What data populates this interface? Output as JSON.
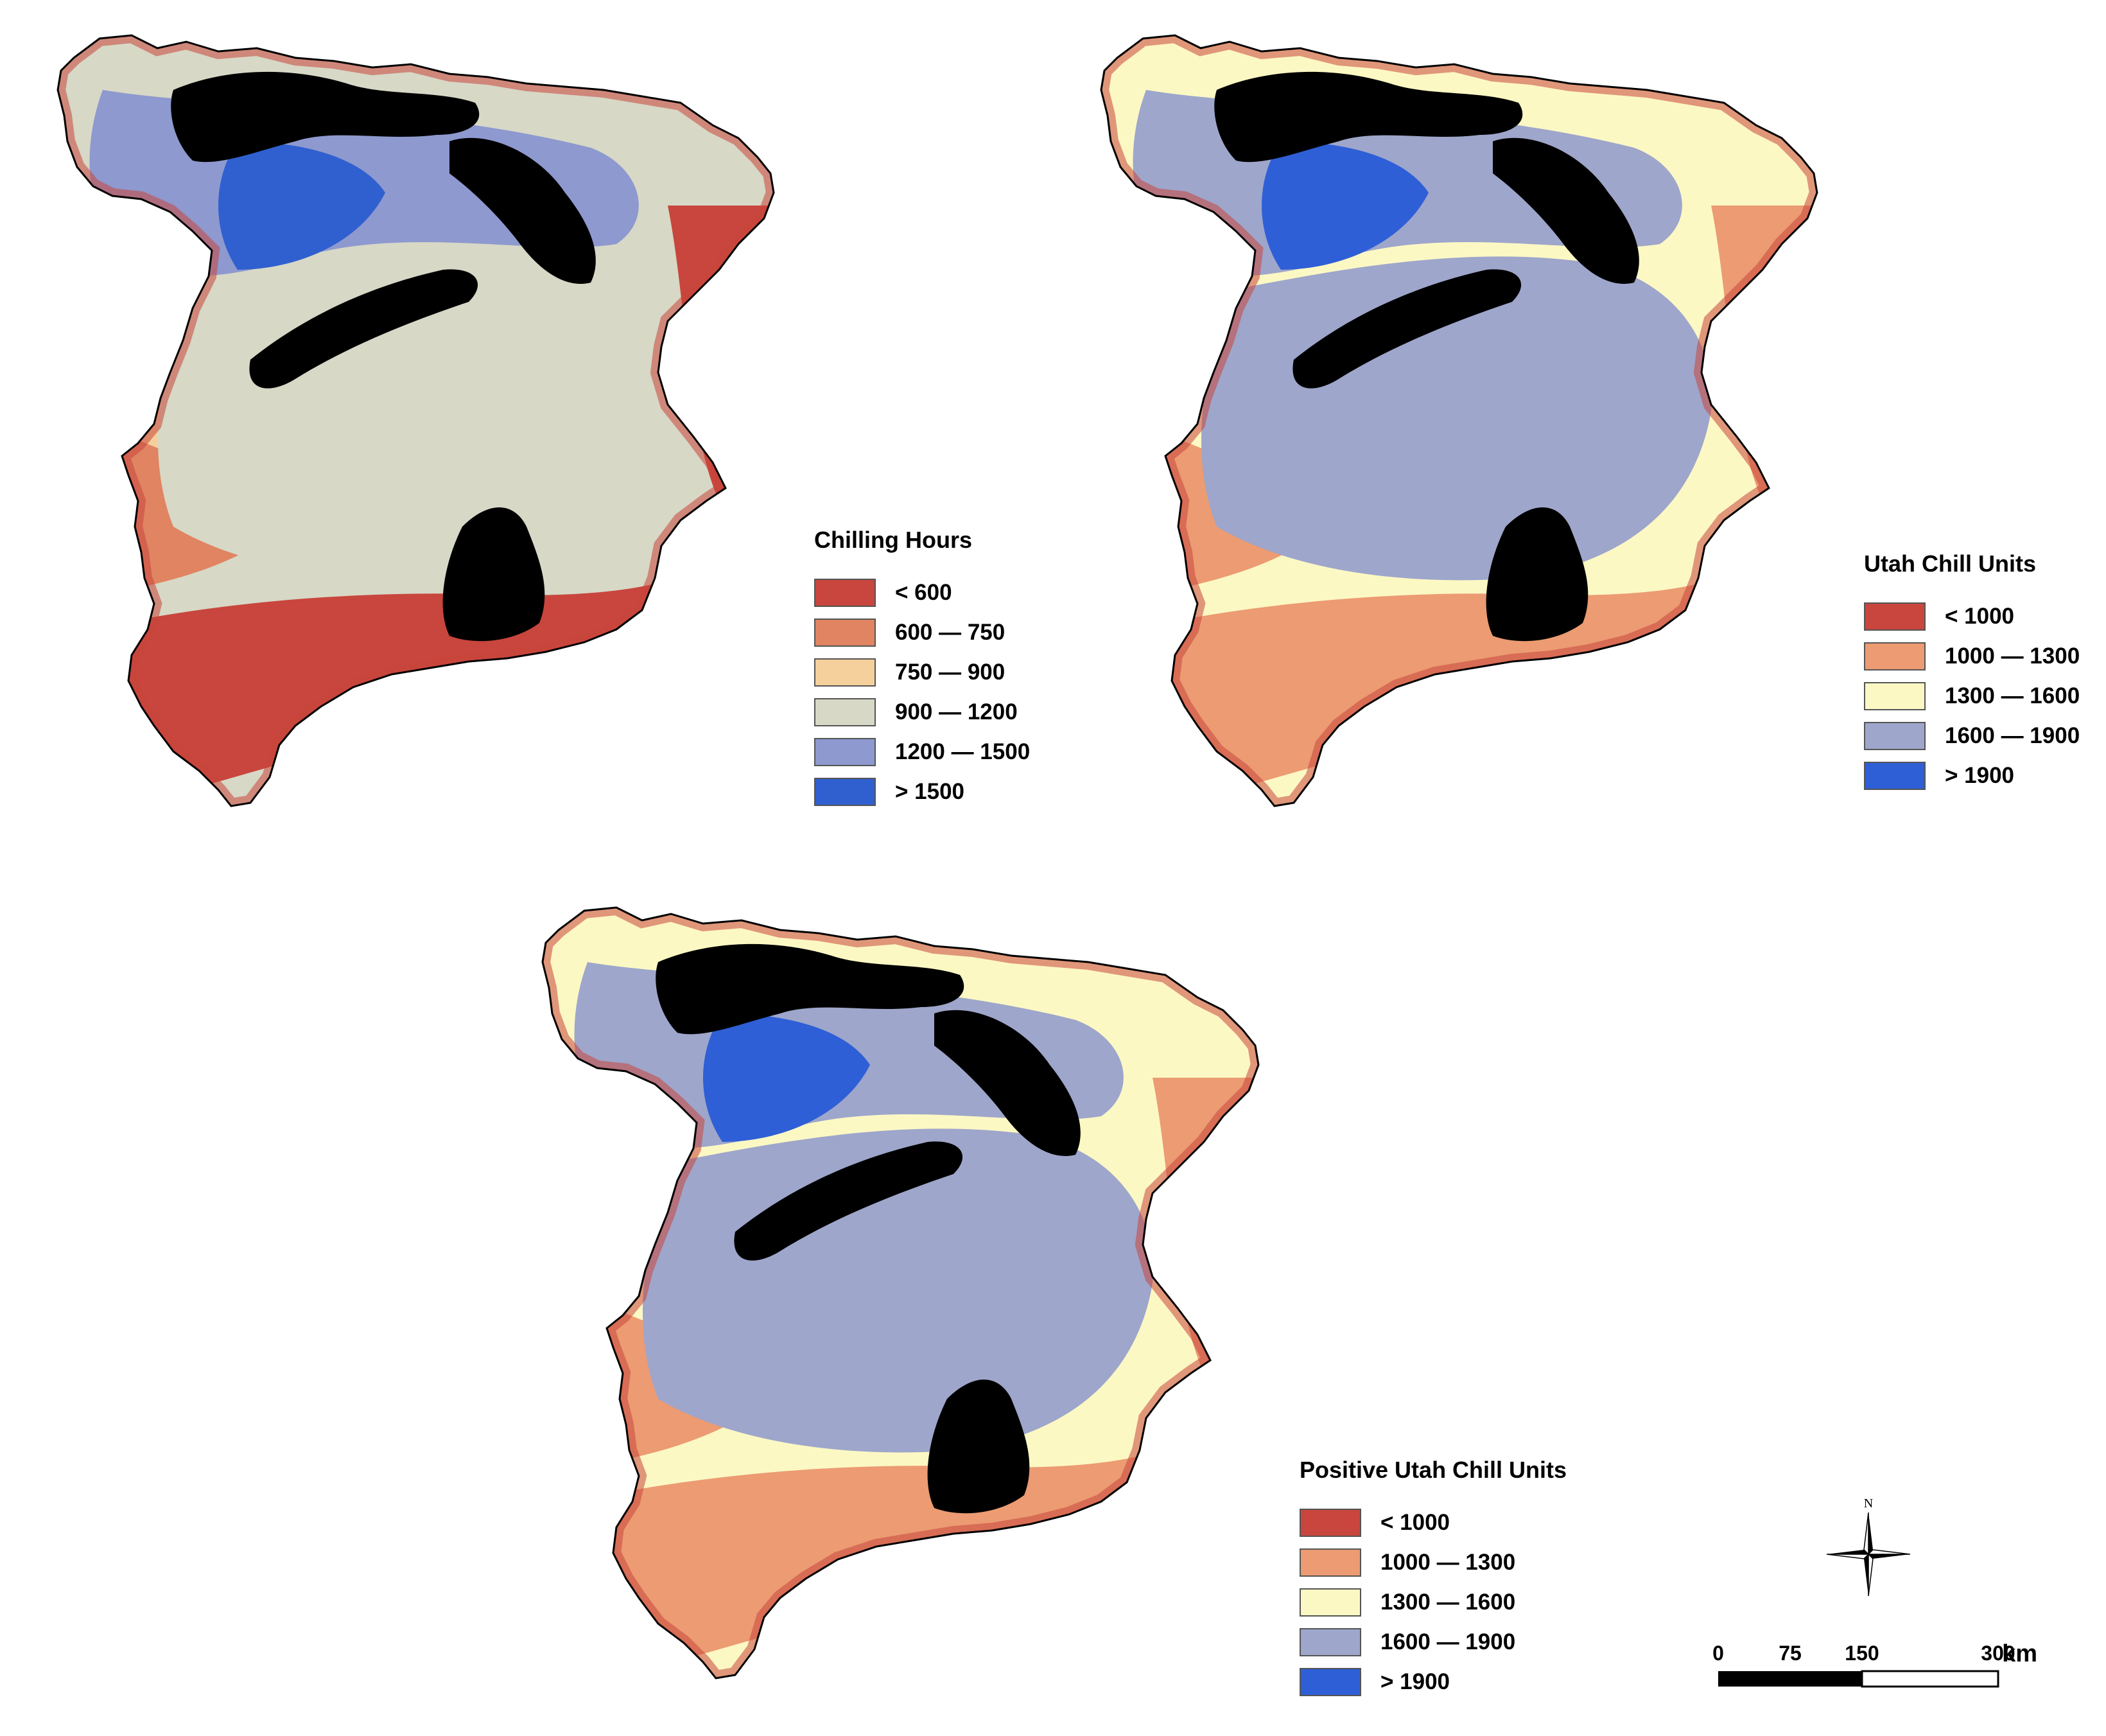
{
  "maps": [
    {
      "id": "chilling-hours",
      "legend": {
        "title": "Chilling Hours",
        "items": [
          {
            "label": "< 600",
            "color": "#c8463d"
          },
          {
            "label": "600 — 750",
            "color": "#e08462"
          },
          {
            "label": "750 — 900",
            "color": "#f6d09c"
          },
          {
            "label": "900 — 1200",
            "color": "#d7d8c6"
          },
          {
            "label": "1200 — 1500",
            "color": "#8e99cf"
          },
          {
            "label": "> 1500",
            "color": "#3060d0"
          }
        ]
      }
    },
    {
      "id": "utah-chill-units",
      "legend": {
        "title": "Utah Chill Units",
        "items": [
          {
            "label": "< 1000",
            "color": "#c8463d"
          },
          {
            "label": "1000 — 1300",
            "color": "#ec9b72"
          },
          {
            "label": "1300 — 1600",
            "color": "#fcf8c4"
          },
          {
            "label": "1600 — 1900",
            "color": "#9ea6cb"
          },
          {
            "label": "> 1900",
            "color": "#2f5fd6"
          }
        ]
      }
    },
    {
      "id": "positive-utah-chill-units",
      "legend": {
        "title": "Positive Utah Chill Units",
        "items": [
          {
            "label": "< 1000",
            "color": "#c8463d"
          },
          {
            "label": "1000 — 1300",
            "color": "#ec9b72"
          },
          {
            "label": "1300 — 1600",
            "color": "#fcf8c4"
          },
          {
            "label": "1600 — 1900",
            "color": "#9ea6cb"
          },
          {
            "label": "> 1900",
            "color": "#2f5fd6"
          }
        ]
      }
    }
  ],
  "unclassified_color": "#000000",
  "compass": {
    "north_label": "N"
  },
  "scale": {
    "ticks": [
      "0",
      "75",
      "150",
      "300"
    ],
    "unit": "km"
  }
}
